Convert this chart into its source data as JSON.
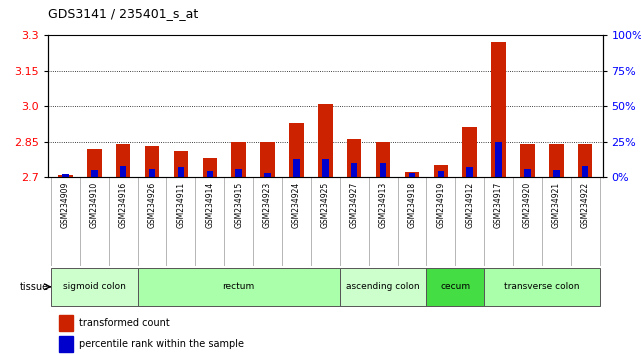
{
  "title": "GDS3141 / 235401_s_at",
  "samples": [
    "GSM234909",
    "GSM234910",
    "GSM234916",
    "GSM234926",
    "GSM234911",
    "GSM234914",
    "GSM234915",
    "GSM234923",
    "GSM234924",
    "GSM234925",
    "GSM234927",
    "GSM234913",
    "GSM234918",
    "GSM234919",
    "GSM234912",
    "GSM234917",
    "GSM234920",
    "GSM234921",
    "GSM234922"
  ],
  "red_values": [
    2.71,
    2.82,
    2.84,
    2.83,
    2.81,
    2.78,
    2.85,
    2.85,
    2.93,
    3.01,
    2.86,
    2.85,
    2.72,
    2.75,
    2.91,
    3.27,
    2.84,
    2.84,
    2.84
  ],
  "blue_values": [
    2,
    5,
    8,
    6,
    7,
    4,
    6,
    3,
    13,
    13,
    10,
    10,
    3,
    4,
    7,
    25,
    6,
    5,
    8
  ],
  "tissue_groups": [
    {
      "label": "sigmoid colon",
      "start": 0,
      "end": 3,
      "color": "#ccffcc"
    },
    {
      "label": "rectum",
      "start": 3,
      "end": 10,
      "color": "#aaffaa"
    },
    {
      "label": "ascending colon",
      "start": 10,
      "end": 13,
      "color": "#ccffcc"
    },
    {
      "label": "cecum",
      "start": 13,
      "end": 15,
      "color": "#44dd44"
    },
    {
      "label": "transverse colon",
      "start": 15,
      "end": 19,
      "color": "#aaffaa"
    }
  ],
  "ylim_left": [
    2.7,
    3.3
  ],
  "ylim_right": [
    0,
    100
  ],
  "yticks_left": [
    2.7,
    2.85,
    3.0,
    3.15,
    3.3
  ],
  "yticks_right": [
    0,
    25,
    50,
    75,
    100
  ],
  "gridlines": [
    2.85,
    3.0,
    3.15
  ],
  "bar_width": 0.5,
  "red_color": "#cc2200",
  "blue_color": "#0000cc",
  "plot_bg": "#ffffff",
  "xlabel_bg": "#cccccc"
}
